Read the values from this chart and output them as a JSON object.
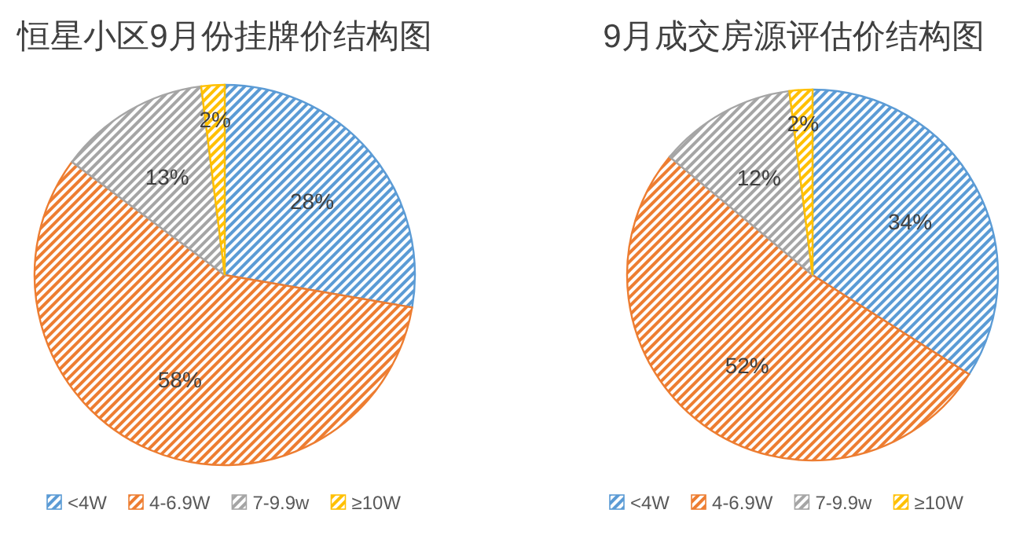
{
  "chart_data": [
    {
      "type": "pie",
      "title": "恒星小区9月份挂牌价结构图",
      "categories": [
        "<4W",
        "4-6.9W",
        "7-9.9w",
        "≥10W"
      ],
      "values": [
        28,
        58,
        13,
        2
      ],
      "colors": [
        "#5b9bd5",
        "#ed7d31",
        "#a5a5a5",
        "#ffc000"
      ],
      "value_labels": [
        "28%",
        "58%",
        "13%",
        "2%"
      ],
      "legend": "bottom"
    },
    {
      "type": "pie",
      "title": "9月成交房源评估价结构图",
      "categories": [
        "<4W",
        "4-6.9W",
        "7-9.9w",
        "≥10W"
      ],
      "values": [
        34,
        52,
        12,
        2
      ],
      "colors": [
        "#5b9bd5",
        "#ed7d31",
        "#a5a5a5",
        "#ffc000"
      ],
      "value_labels": [
        "34%",
        "52%",
        "12%",
        "2%"
      ],
      "legend": "bottom"
    }
  ]
}
